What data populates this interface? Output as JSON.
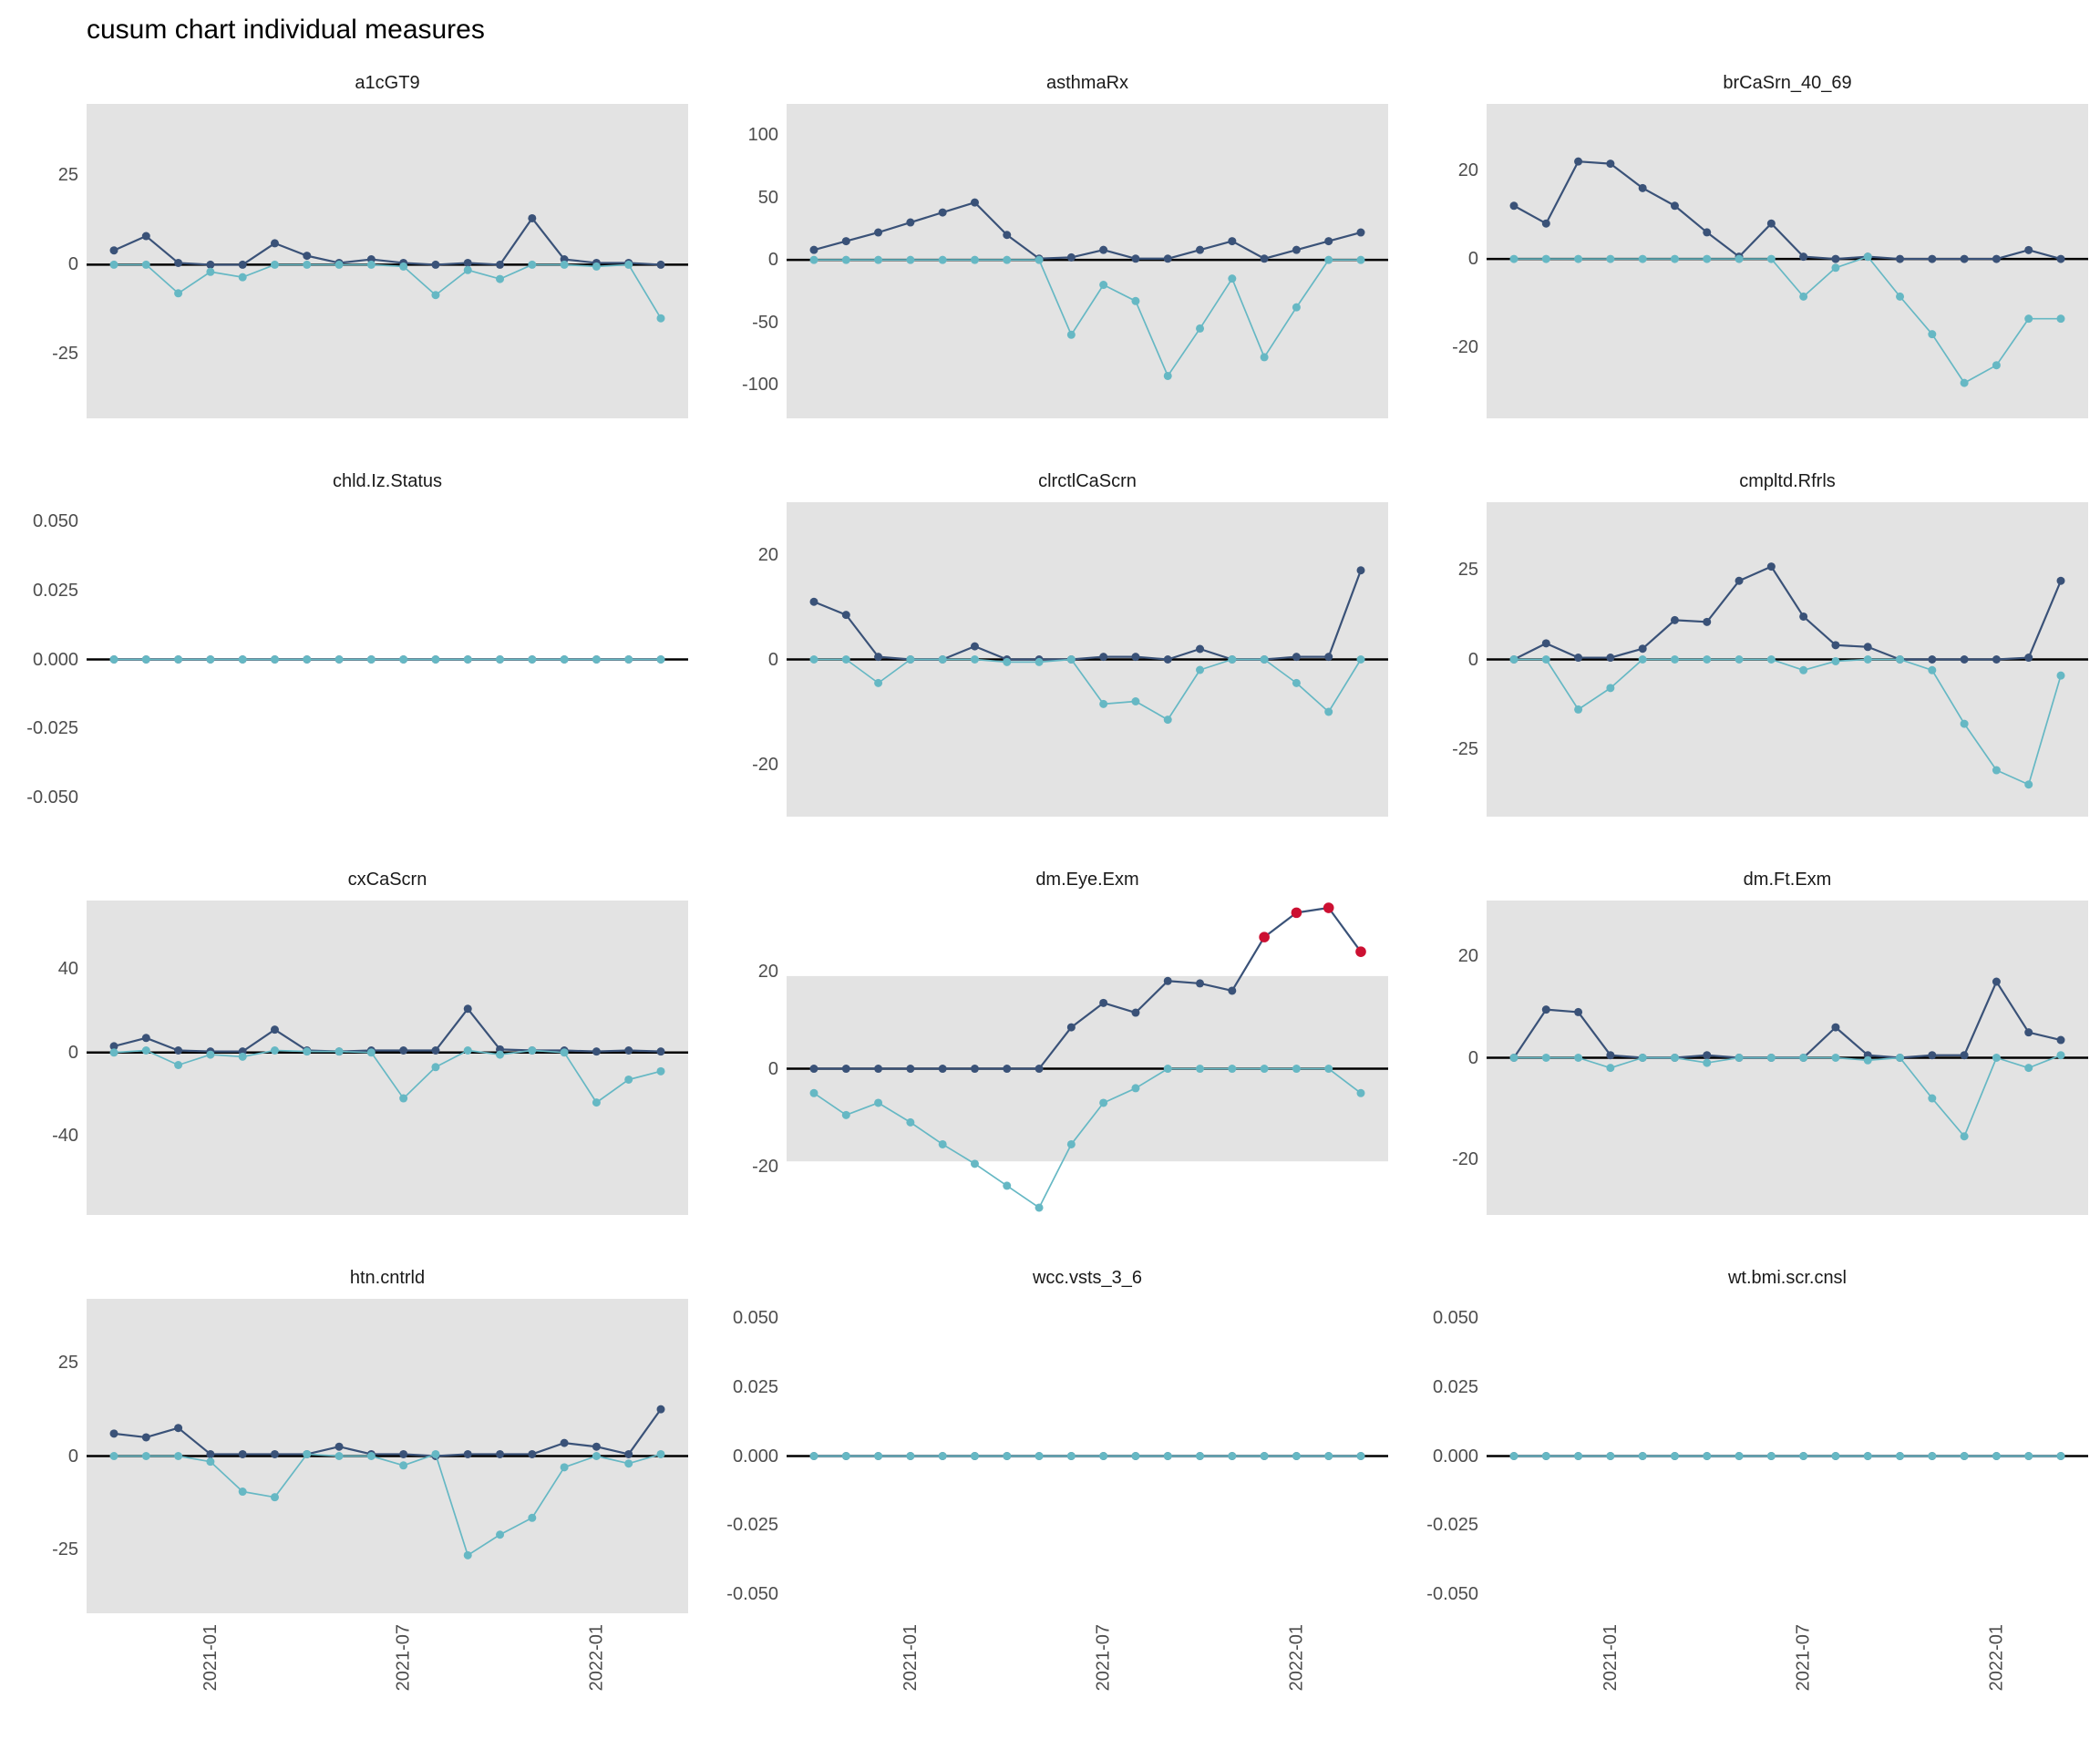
{
  "title": "cusum chart  individual measures",
  "colors": {
    "upper_series": "#3A5278",
    "lower_series": "#66B8C4",
    "signal": "#CC1032",
    "band": "#E3E3E3",
    "zero_line": "#000000",
    "axis_text": "#4D4D4D",
    "facet_title_text": "#1A1A1A"
  },
  "n_points": 18,
  "x_ticks": [
    {
      "index": 3,
      "label": "2021-01"
    },
    {
      "index": 9,
      "label": "2021-07"
    },
    {
      "index": 15,
      "label": "2022-01"
    }
  ],
  "chart_data": [
    {
      "type": "line",
      "title": "a1cGT9",
      "y_ticks": [
        {
          "value": 25,
          "label": "25"
        },
        {
          "value": 0,
          "label": "0"
        },
        {
          "value": -25,
          "label": "-25"
        }
      ],
      "y_range": [
        -43,
        45
      ],
      "band": "full",
      "series": [
        {
          "name": "upper cusum",
          "values": [
            4,
            8,
            0.5,
            0,
            0,
            6,
            2.5,
            0.5,
            1.5,
            0.5,
            0,
            0.5,
            0,
            13,
            1.5,
            0.5,
            0.5,
            0
          ]
        },
        {
          "name": "lower cusum",
          "values": [
            0,
            0,
            -8,
            -2,
            -3.5,
            0,
            0,
            0,
            0,
            -0.5,
            -8.5,
            -1.5,
            -4,
            0,
            0,
            -0.5,
            0,
            -15
          ]
        }
      ],
      "signal_indices": []
    },
    {
      "type": "line",
      "title": "asthmaRx",
      "y_ticks": [
        {
          "value": 100,
          "label": "100"
        },
        {
          "value": 50,
          "label": "50"
        },
        {
          "value": 0,
          "label": "0"
        },
        {
          "value": -50,
          "label": "-50"
        },
        {
          "value": -100,
          "label": "-100"
        }
      ],
      "y_range": [
        -127,
        125
      ],
      "band": "full",
      "series": [
        {
          "name": "upper cusum",
          "values": [
            8,
            15,
            22,
            30,
            38,
            46,
            20,
            1,
            2,
            8,
            1,
            1,
            8,
            15,
            1,
            8,
            15,
            22
          ]
        },
        {
          "name": "lower cusum",
          "values": [
            0,
            0,
            0,
            0,
            0,
            0,
            0,
            0,
            -60,
            -20,
            -33,
            -93,
            -55,
            -15,
            -78,
            -38,
            0,
            0
          ]
        }
      ],
      "signal_indices": []
    },
    {
      "type": "line",
      "title": "brCaSrn_40_69",
      "y_ticks": [
        {
          "value": 20,
          "label": "20"
        },
        {
          "value": 0,
          "label": "0"
        },
        {
          "value": -20,
          "label": "-20"
        }
      ],
      "y_range": [
        -36,
        35
      ],
      "band": "full",
      "series": [
        {
          "name": "upper cusum",
          "values": [
            12,
            8,
            22,
            21.5,
            16,
            12,
            6,
            0.5,
            8,
            0.5,
            0,
            0.5,
            0,
            0,
            0,
            0,
            2,
            0
          ]
        },
        {
          "name": "lower cusum",
          "values": [
            0,
            0,
            0,
            0,
            0,
            0,
            0,
            0,
            0,
            -8.5,
            -2,
            0.5,
            -8.5,
            -17,
            -28,
            -24,
            -13.5,
            -13.5
          ]
        }
      ],
      "signal_indices": []
    },
    {
      "type": "line",
      "title": "chld.Iz.Status",
      "y_ticks": [
        {
          "value": 0.05,
          "label": "0.050"
        },
        {
          "value": 0.025,
          "label": "0.025"
        },
        {
          "value": 0,
          "label": "0.000"
        },
        {
          "value": -0.025,
          "label": "-0.025"
        },
        {
          "value": -0.05,
          "label": "-0.050"
        }
      ],
      "y_range": [
        -0.057,
        0.057
      ],
      "band": "none",
      "series": [
        {
          "name": "upper cusum",
          "values": [
            0,
            0,
            0,
            0,
            0,
            0,
            0,
            0,
            0,
            0,
            0,
            0,
            0,
            0,
            0,
            0,
            0,
            0
          ]
        },
        {
          "name": "lower cusum",
          "values": [
            0,
            0,
            0,
            0,
            0,
            0,
            0,
            0,
            0,
            0,
            0,
            0,
            0,
            0,
            0,
            0,
            0,
            0
          ]
        }
      ],
      "signal_indices": []
    },
    {
      "type": "line",
      "title": "clrctlCaScrn",
      "y_ticks": [
        {
          "value": 20,
          "label": "20"
        },
        {
          "value": 0,
          "label": "0"
        },
        {
          "value": -20,
          "label": "-20"
        }
      ],
      "y_range": [
        -30,
        30
      ],
      "band": "full",
      "series": [
        {
          "name": "upper cusum",
          "values": [
            11,
            8.5,
            0.5,
            0,
            0,
            2.5,
            0,
            0,
            0,
            0.5,
            0.5,
            0,
            2,
            0,
            0,
            0.5,
            0.5,
            17
          ]
        },
        {
          "name": "lower cusum",
          "values": [
            0,
            0,
            -4.5,
            0,
            0,
            0,
            -0.5,
            -0.5,
            0,
            -8.5,
            -8,
            -11.5,
            -2,
            0,
            0,
            -4.5,
            -10,
            0
          ]
        }
      ],
      "signal_indices": []
    },
    {
      "type": "line",
      "title": "cmpltd.Rfrls",
      "y_ticks": [
        {
          "value": 25,
          "label": "25"
        },
        {
          "value": 0,
          "label": "0"
        },
        {
          "value": -25,
          "label": "-25"
        }
      ],
      "y_range": [
        -44,
        44
      ],
      "band": "full",
      "series": [
        {
          "name": "upper cusum",
          "values": [
            0,
            4.5,
            0.5,
            0.5,
            3,
            11,
            10.5,
            22,
            26,
            12,
            4,
            3.5,
            0,
            0,
            0,
            0,
            0.5,
            22
          ]
        },
        {
          "name": "lower cusum",
          "values": [
            0,
            0,
            -14,
            -8,
            0,
            0,
            0,
            0,
            0,
            -3,
            -0.5,
            0,
            0,
            -3,
            -18,
            -31,
            -35,
            -4.5
          ]
        }
      ],
      "signal_indices": []
    },
    {
      "type": "line",
      "title": "cxCaScrn",
      "y_ticks": [
        {
          "value": 40,
          "label": "40"
        },
        {
          "value": 0,
          "label": "0"
        },
        {
          "value": -40,
          "label": "-40"
        }
      ],
      "y_range": [
        -78,
        73
      ],
      "band": "full",
      "series": [
        {
          "name": "upper cusum",
          "values": [
            3,
            7,
            1,
            0.5,
            0.5,
            11,
            1,
            0.5,
            1,
            1,
            1,
            21,
            1.5,
            1,
            1,
            0.5,
            1,
            0.5
          ]
        },
        {
          "name": "lower cusum",
          "values": [
            0,
            1,
            -6,
            -1,
            -2,
            1,
            0.5,
            0.5,
            0,
            -22,
            -7,
            1,
            -1,
            1,
            0,
            -24,
            -13,
            -9
          ]
        }
      ],
      "signal_indices": []
    },
    {
      "type": "line",
      "title": "dm.Eye.Exm",
      "y_ticks": [
        {
          "value": 20,
          "label": "20"
        },
        {
          "value": 0,
          "label": "0"
        },
        {
          "value": -20,
          "label": "-20"
        }
      ],
      "y_range": [
        -30,
        34.5
      ],
      "band": [
        -19,
        19
      ],
      "series": [
        {
          "name": "upper cusum",
          "values": [
            0,
            0,
            0,
            0,
            0,
            0,
            0,
            0,
            8.5,
            13.5,
            11.5,
            18,
            17.5,
            16,
            27,
            32,
            33,
            24
          ]
        },
        {
          "name": "lower cusum",
          "values": [
            -5,
            -9.5,
            -7,
            -11,
            -15.5,
            -19.5,
            -24,
            -28.5,
            -15.5,
            -7,
            -4,
            0,
            0,
            0,
            0,
            0,
            0,
            -5
          ]
        }
      ],
      "signal_indices": [
        14,
        15,
        16,
        17
      ]
    },
    {
      "type": "line",
      "title": "dm.Ft.Exm",
      "y_ticks": [
        {
          "value": 20,
          "label": "20"
        },
        {
          "value": 0,
          "label": "0"
        },
        {
          "value": -20,
          "label": "-20"
        }
      ],
      "y_range": [
        -31,
        31
      ],
      "band": "full",
      "series": [
        {
          "name": "upper cusum",
          "values": [
            0,
            9.5,
            9,
            0.5,
            0,
            0,
            0.5,
            0,
            0,
            0,
            6,
            0.5,
            0,
            0.5,
            0.5,
            15,
            5,
            3.5
          ]
        },
        {
          "name": "lower cusum",
          "values": [
            0,
            0,
            0,
            -2,
            0,
            0,
            -1,
            0,
            0,
            0,
            0,
            -0.5,
            0,
            -8,
            -15.5,
            0,
            -2,
            0.5
          ]
        }
      ],
      "signal_indices": []
    },
    {
      "type": "line",
      "title": "htn.cntrld",
      "y_ticks": [
        {
          "value": 25,
          "label": "25"
        },
        {
          "value": 0,
          "label": "0"
        },
        {
          "value": -25,
          "label": "-25"
        }
      ],
      "y_range": [
        -42,
        42
      ],
      "band": "full",
      "series": [
        {
          "name": "upper cusum",
          "values": [
            6,
            5,
            7.5,
            0.5,
            0.5,
            0.5,
            0.5,
            2.5,
            0.5,
            0.5,
            0,
            0.5,
            0.5,
            0.5,
            3.5,
            2.5,
            0.5,
            12.5
          ]
        },
        {
          "name": "lower cusum",
          "values": [
            0,
            0,
            0,
            -1.5,
            -9.5,
            -11,
            0.5,
            0,
            0,
            -2.5,
            0.5,
            -26.5,
            -21,
            -16.5,
            -3,
            0,
            -2,
            0.5
          ]
        }
      ],
      "signal_indices": []
    },
    {
      "type": "line",
      "title": "wcc.vsts_3_6",
      "y_ticks": [
        {
          "value": 0.05,
          "label": "0.050"
        },
        {
          "value": 0.025,
          "label": "0.025"
        },
        {
          "value": 0,
          "label": "0.000"
        },
        {
          "value": -0.025,
          "label": "-0.025"
        },
        {
          "value": -0.05,
          "label": "-0.050"
        }
      ],
      "y_range": [
        -0.057,
        0.057
      ],
      "band": "none",
      "series": [
        {
          "name": "upper cusum",
          "values": [
            0,
            0,
            0,
            0,
            0,
            0,
            0,
            0,
            0,
            0,
            0,
            0,
            0,
            0,
            0,
            0,
            0,
            0
          ]
        },
        {
          "name": "lower cusum",
          "values": [
            0,
            0,
            0,
            0,
            0,
            0,
            0,
            0,
            0,
            0,
            0,
            0,
            0,
            0,
            0,
            0,
            0,
            0
          ]
        }
      ],
      "signal_indices": []
    },
    {
      "type": "line",
      "title": "wt.bmi.scr.cnsl",
      "y_ticks": [
        {
          "value": 0.05,
          "label": "0.050"
        },
        {
          "value": 0.025,
          "label": "0.025"
        },
        {
          "value": 0,
          "label": "0.000"
        },
        {
          "value": -0.025,
          "label": "-0.025"
        },
        {
          "value": -0.05,
          "label": "-0.050"
        }
      ],
      "y_range": [
        -0.057,
        0.057
      ],
      "band": "none",
      "series": [
        {
          "name": "upper cusum",
          "values": [
            0,
            0,
            0,
            0,
            0,
            0,
            0,
            0,
            0,
            0,
            0,
            0,
            0,
            0,
            0,
            0,
            0,
            0
          ]
        },
        {
          "name": "lower cusum",
          "values": [
            0,
            0,
            0,
            0,
            0,
            0,
            0,
            0,
            0,
            0,
            0,
            0,
            0,
            0,
            0,
            0,
            0,
            0
          ]
        }
      ],
      "signal_indices": []
    }
  ]
}
